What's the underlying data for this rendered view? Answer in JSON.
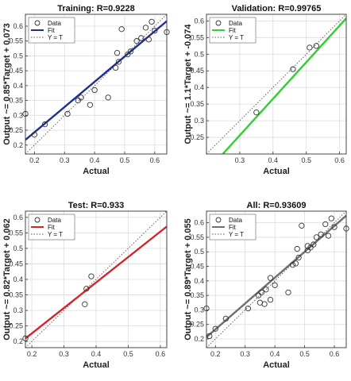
{
  "chart_data": [
    {
      "type": "scatter",
      "title": "Training: R=0.9228",
      "xlabel": "Actual",
      "ylabel": "Output ~= 0.85*Target + 0.073",
      "xlim": [
        0.17,
        0.64
      ],
      "ylim": [
        0.17,
        0.64
      ],
      "xticks": [
        "0.2",
        "0.3",
        "0.4",
        "0.5",
        "0.6"
      ],
      "yticks": [
        "0.2",
        "0.25",
        "0.3",
        "0.35",
        "0.4",
        "0.45",
        "0.5",
        "0.55",
        "0.6"
      ],
      "grid": true,
      "legend": {
        "position": "top-left",
        "entries": [
          "Data",
          "Fit",
          "Y = T"
        ]
      },
      "fit": {
        "slope": 0.85,
        "intercept": 0.073,
        "color": "#1f2f8f"
      },
      "points": [
        [
          0.17,
          0.305
        ],
        [
          0.2,
          0.235
        ],
        [
          0.235,
          0.27
        ],
        [
          0.31,
          0.305
        ],
        [
          0.345,
          0.35
        ],
        [
          0.355,
          0.36
        ],
        [
          0.385,
          0.335
        ],
        [
          0.4,
          0.385
        ],
        [
          0.445,
          0.36
        ],
        [
          0.47,
          0.46
        ],
        [
          0.475,
          0.51
        ],
        [
          0.48,
          0.48
        ],
        [
          0.49,
          0.59
        ],
        [
          0.51,
          0.505
        ],
        [
          0.52,
          0.515
        ],
        [
          0.54,
          0.55
        ],
        [
          0.555,
          0.56
        ],
        [
          0.57,
          0.595
        ],
        [
          0.58,
          0.555
        ],
        [
          0.59,
          0.615
        ],
        [
          0.6,
          0.585
        ],
        [
          0.64,
          0.58
        ]
      ]
    },
    {
      "type": "scatter",
      "title": "Validation: R=0.99765",
      "xlabel": "Actual",
      "ylabel": "Output ~= 1.1*Target + -0.074",
      "xlim": [
        0.2,
        0.62
      ],
      "ylim": [
        0.2,
        0.62
      ],
      "xticks": [
        "0.3",
        "0.4",
        "0.5",
        "0.6"
      ],
      "yticks": [
        "0.25",
        "0.3",
        "0.35",
        "0.4",
        "0.45",
        "0.5",
        "0.55",
        "0.6"
      ],
      "grid": true,
      "legend": {
        "position": "top-left",
        "entries": [
          "Data",
          "Fit",
          "Y = T"
        ]
      },
      "fit": {
        "slope": 1.1,
        "intercept": -0.074,
        "color": "#2fd02f"
      },
      "points": [
        [
          0.35,
          0.325
        ],
        [
          0.46,
          0.455
        ],
        [
          0.51,
          0.52
        ],
        [
          0.53,
          0.525
        ]
      ]
    },
    {
      "type": "scatter",
      "title": "Test: R=0.933",
      "xlabel": "Actual",
      "ylabel": "Output ~= 0.82*Target + 0.062",
      "xlim": [
        0.18,
        0.62
      ],
      "ylim": [
        0.18,
        0.62
      ],
      "xticks": [
        "0.2",
        "0.3",
        "0.4",
        "0.5",
        "0.6"
      ],
      "yticks": [
        "0.2",
        "0.25",
        "0.3",
        "0.35",
        "0.4",
        "0.45",
        "0.5",
        "0.55",
        "0.6"
      ],
      "grid": true,
      "legend": {
        "position": "top-left",
        "entries": [
          "Data",
          "Fit",
          "Y = T"
        ]
      },
      "fit": {
        "slope": 0.82,
        "intercept": 0.062,
        "color": "#d1262b"
      },
      "points": [
        [
          0.18,
          0.21
        ],
        [
          0.365,
          0.32
        ],
        [
          0.37,
          0.37
        ],
        [
          0.385,
          0.41
        ]
      ]
    },
    {
      "type": "scatter",
      "title": "All: R=0.93609",
      "xlabel": "Actual",
      "ylabel": "Output ~= 0.89*Target + 0.055",
      "xlim": [
        0.17,
        0.64
      ],
      "ylim": [
        0.17,
        0.64
      ],
      "xticks": [
        "0.2",
        "0.3",
        "0.4",
        "0.5",
        "0.6"
      ],
      "yticks": [
        "0.2",
        "0.25",
        "0.3",
        "0.35",
        "0.4",
        "0.45",
        "0.5",
        "0.55",
        "0.6"
      ],
      "grid": true,
      "legend": {
        "position": "top-left",
        "entries": [
          "Data",
          "Fit",
          "Y = T"
        ]
      },
      "fit": {
        "slope": 0.89,
        "intercept": 0.055,
        "color": "#6e6e6e"
      },
      "points": [
        [
          0.17,
          0.305
        ],
        [
          0.18,
          0.21
        ],
        [
          0.2,
          0.235
        ],
        [
          0.235,
          0.27
        ],
        [
          0.31,
          0.305
        ],
        [
          0.345,
          0.35
        ],
        [
          0.35,
          0.325
        ],
        [
          0.355,
          0.36
        ],
        [
          0.365,
          0.32
        ],
        [
          0.37,
          0.37
        ],
        [
          0.385,
          0.41
        ],
        [
          0.385,
          0.335
        ],
        [
          0.4,
          0.385
        ],
        [
          0.445,
          0.36
        ],
        [
          0.46,
          0.455
        ],
        [
          0.47,
          0.46
        ],
        [
          0.475,
          0.51
        ],
        [
          0.48,
          0.48
        ],
        [
          0.49,
          0.59
        ],
        [
          0.51,
          0.505
        ],
        [
          0.51,
          0.52
        ],
        [
          0.52,
          0.515
        ],
        [
          0.53,
          0.525
        ],
        [
          0.54,
          0.55
        ],
        [
          0.555,
          0.56
        ],
        [
          0.57,
          0.595
        ],
        [
          0.58,
          0.555
        ],
        [
          0.59,
          0.615
        ],
        [
          0.6,
          0.585
        ],
        [
          0.64,
          0.58
        ]
      ]
    }
  ]
}
